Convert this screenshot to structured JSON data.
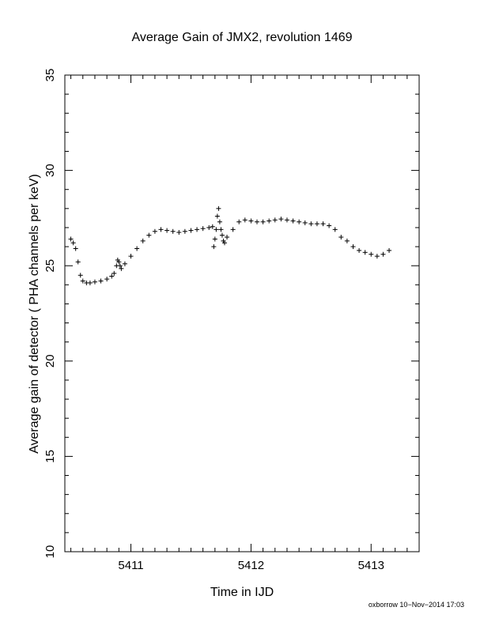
{
  "footer": "oxborrow 10−Nov−2014 17:03",
  "chart_data": {
    "type": "scatter",
    "title": "Average Gain of JMX2, revolution 1469",
    "xlabel": "Time in IJD",
    "ylabel": "Average gain of detector ( PHA channels per keV)",
    "xlim": [
      5410.45,
      5413.4
    ],
    "ylim": [
      10,
      35
    ],
    "xticks": [
      5411,
      5412,
      5413
    ],
    "yticks": [
      10,
      15,
      20,
      25,
      30,
      35
    ],
    "x_minor_step": 0.1,
    "y_minor_step": 1,
    "marker": "plus",
    "grid": false,
    "series": [
      {
        "x": [
          5410.5,
          5410.52,
          5410.54,
          5410.56,
          5410.58,
          5410.6,
          5410.63,
          5410.66,
          5410.7,
          5410.75,
          5410.8,
          5410.84,
          5410.86,
          5410.88,
          5410.89,
          5410.9,
          5410.91,
          5410.92,
          5410.95,
          5411.0,
          5411.05,
          5411.1,
          5411.15,
          5411.2,
          5411.25,
          5411.3,
          5411.35,
          5411.4,
          5411.45,
          5411.5,
          5411.55,
          5411.6,
          5411.65,
          5411.68,
          5411.69,
          5411.7,
          5411.71,
          5411.72,
          5411.73,
          5411.74,
          5411.75,
          5411.76,
          5411.77,
          5411.78,
          5411.8,
          5411.85,
          5411.9,
          5411.95,
          5412.0,
          5412.05,
          5412.1,
          5412.15,
          5412.2,
          5412.25,
          5412.3,
          5412.35,
          5412.4,
          5412.45,
          5412.5,
          5412.55,
          5412.6,
          5412.65,
          5412.7,
          5412.75,
          5412.8,
          5412.85,
          5412.9,
          5412.95,
          5413.0,
          5413.05,
          5413.1,
          5413.15
        ],
        "y": [
          26.4,
          26.2,
          25.9,
          25.2,
          24.5,
          24.2,
          24.1,
          24.1,
          24.15,
          24.2,
          24.3,
          24.45,
          24.6,
          25.0,
          25.3,
          25.2,
          25.0,
          24.85,
          25.1,
          25.5,
          25.9,
          26.3,
          26.6,
          26.8,
          26.9,
          26.85,
          26.8,
          26.75,
          26.8,
          26.85,
          26.9,
          26.95,
          27.0,
          27.05,
          26.0,
          26.4,
          26.9,
          27.6,
          28.0,
          27.3,
          26.9,
          26.6,
          26.3,
          26.2,
          26.5,
          26.9,
          27.3,
          27.4,
          27.35,
          27.3,
          27.3,
          27.35,
          27.4,
          27.45,
          27.4,
          27.35,
          27.3,
          27.25,
          27.2,
          27.2,
          27.2,
          27.1,
          26.9,
          26.5,
          26.3,
          26.0,
          25.8,
          25.7,
          25.6,
          25.5,
          25.6,
          25.8
        ]
      }
    ]
  }
}
